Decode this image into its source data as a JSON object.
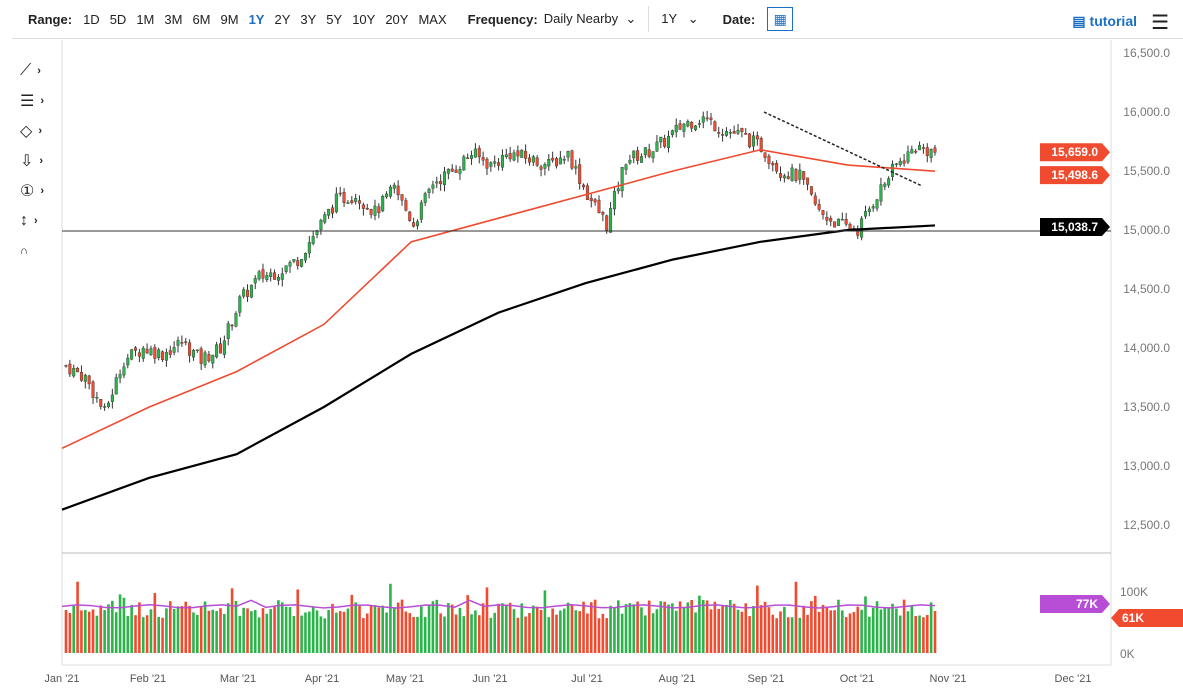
{
  "toolbar": {
    "range_label": "Range:",
    "ranges": [
      "1D",
      "5D",
      "1M",
      "3M",
      "6M",
      "9M",
      "1Y",
      "2Y",
      "3Y",
      "5Y",
      "10Y",
      "20Y",
      "MAX"
    ],
    "active_range": "1Y",
    "frequency_label": "Frequency:",
    "frequency": "Daily Nearby",
    "period": "1Y",
    "date_label": "Date:",
    "tutorial": "tutorial"
  },
  "tools": [
    "trendline-icon",
    "fib-icon",
    "shape-icon",
    "arrow-icon",
    "note-icon",
    "measure-icon",
    "magnet-icon"
  ],
  "colors": {
    "up": "#2cb34a",
    "down": "#f04a2f",
    "ma50": "#f04a2f",
    "ma200": "#000000",
    "vol_ma": "#b84ed6"
  },
  "chart_data": {
    "type": "candlestick",
    "price_axis": {
      "ticks": [
        "16,500.0",
        "16,000.0",
        "15,500.0",
        "15,000.0",
        "14,500.0",
        "14,000.0",
        "13,500.0",
        "13,000.0",
        "12,500.0"
      ],
      "tick_values": [
        16500,
        16000,
        15500,
        15000,
        14500,
        14000,
        13500,
        13000,
        12500
      ],
      "ylim": [
        12500,
        16500
      ]
    },
    "x_ticks": [
      "Jan '21",
      "Feb '21",
      "Mar '21",
      "Apr '21",
      "May '21",
      "Jun '21",
      "Jul '21",
      "Aug '21",
      "Sep '21",
      "Oct '21",
      "Nov '21",
      "Dec '21"
    ],
    "weekly_closes": [
      13850,
      13750,
      13450,
      13900,
      14000,
      13950,
      14050,
      13900,
      14000,
      14400,
      14600,
      14650,
      14750,
      15000,
      15250,
      15300,
      15150,
      15350,
      15050,
      15400,
      15500,
      15650,
      15550,
      15650,
      15600,
      15550,
      15650,
      15300,
      15050,
      15600,
      15650,
      15750,
      15900,
      15950,
      15850,
      15800,
      15700,
      15500,
      15450,
      15150,
      15050,
      15000,
      15300,
      15550,
      15700,
      15659
    ],
    "ma50": [
      13150,
      13500,
      13800,
      14200,
      14900,
      15100,
      15300,
      15500,
      15680,
      15550,
      15498.6
    ],
    "ma200": [
      12630,
      12900,
      13100,
      13500,
      13950,
      14300,
      14550,
      14750,
      14900,
      15000,
      15038.7
    ],
    "labels": {
      "last": "15,659.0",
      "ma50": "15,498.6",
      "ma200": "15,038.7"
    },
    "horizontal_line": 15038.7,
    "volume_axis": {
      "ticks": [
        "100K",
        "0K"
      ],
      "ylim": [
        0,
        100000
      ]
    },
    "volume_labels": {
      "vol_ma": "77K",
      "last": "61K"
    }
  }
}
